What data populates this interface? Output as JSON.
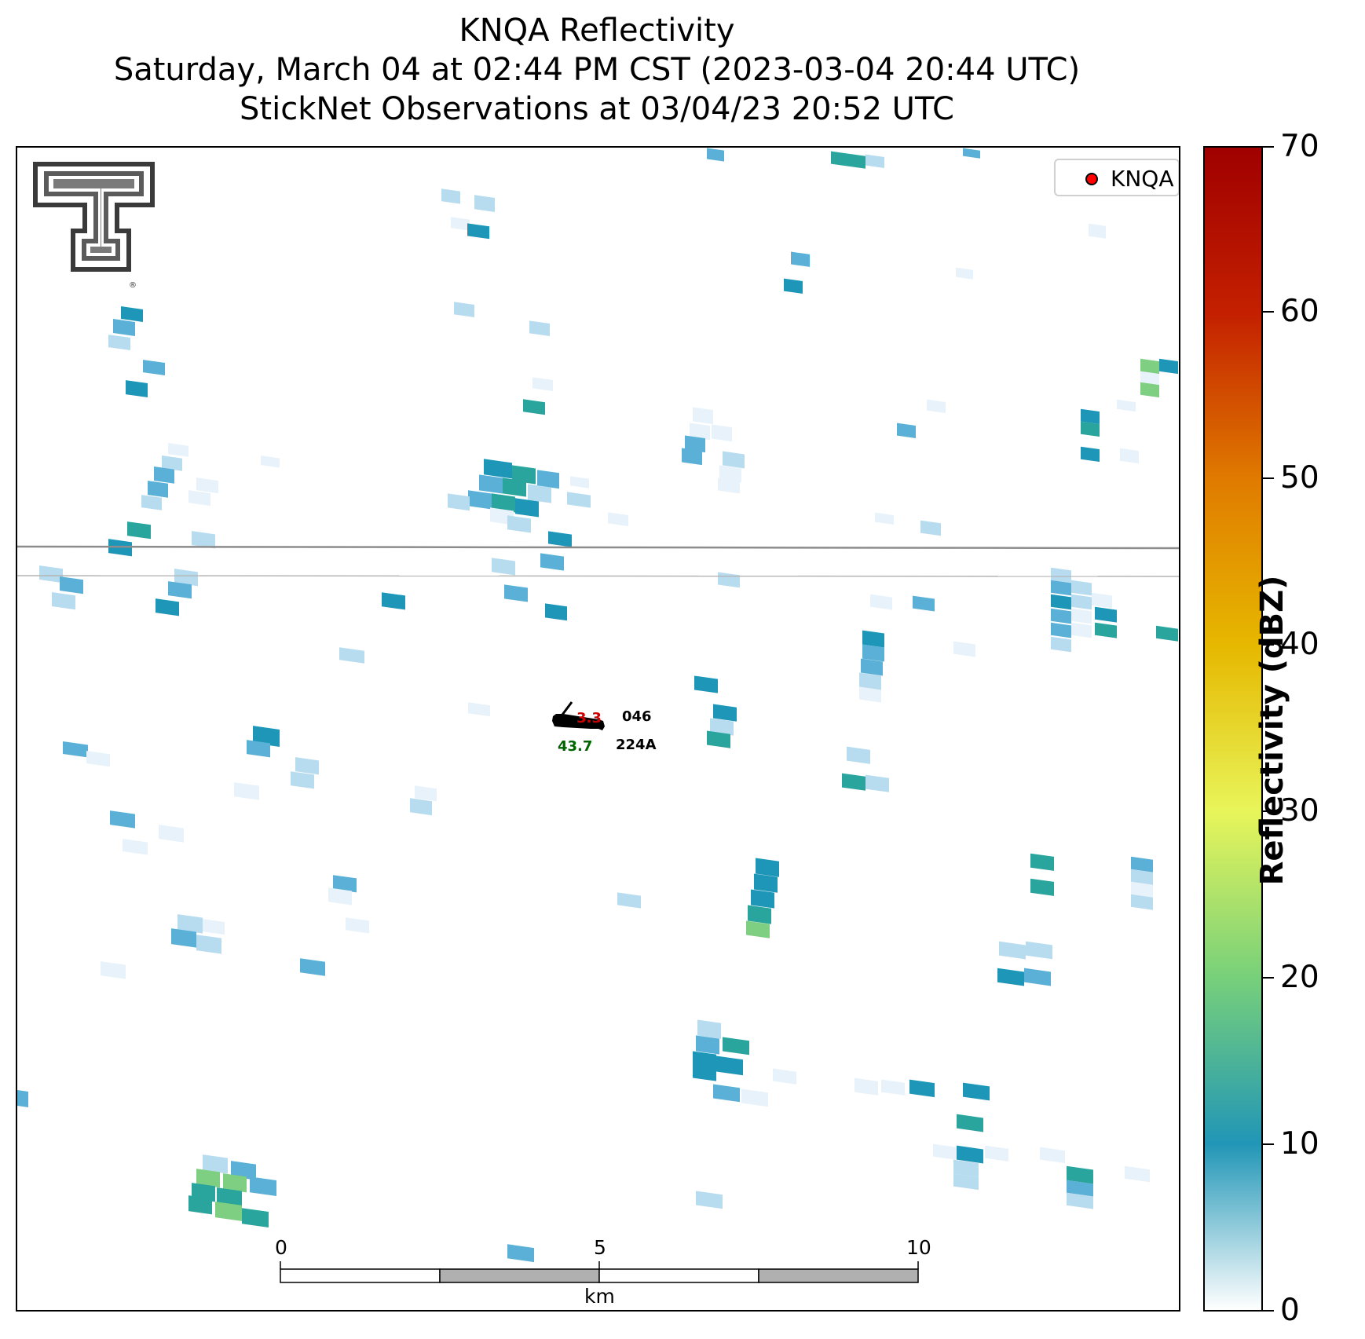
{
  "title": {
    "line1": "KNQA Reflectivity",
    "line2": "Saturday, March 04 at 02:44 PM CST (2023-03-04 20:44 UTC)",
    "line3": "StickNet Observations at 03/04/23 20:52 UTC"
  },
  "legend": {
    "label": "KNQA",
    "marker_color": "#ff0000"
  },
  "station": {
    "id_top": "046",
    "id_bottom": "224A",
    "temperature": "3.3",
    "dewpoint": "43.7",
    "temperature_color": "#cc0000",
    "dewpoint_color": "#006400"
  },
  "scalebar": {
    "unit": "km",
    "ticks": [
      "0",
      "5",
      "10"
    ]
  },
  "colorbar": {
    "label": "Reflectivity (dBZ)",
    "ticks": [
      "0",
      "10",
      "20",
      "30",
      "40",
      "50",
      "60",
      "70"
    ],
    "min": 0,
    "max": 70,
    "colors": [
      "#ffffff",
      "#2196b6",
      "#77d07a",
      "#e8f55a",
      "#e6b800",
      "#e07b00",
      "#c42000",
      "#a00000"
    ]
  },
  "logo": {
    "name": "Texas Tech double-T logo"
  },
  "reflectivity_colors": {
    "very-light": "#e8f2fa",
    "light": "#b8dcef",
    "medium": "#5ab0d6",
    "strong": "#1e96b8",
    "teal": "#2aa59d",
    "green": "#7fcf82"
  }
}
